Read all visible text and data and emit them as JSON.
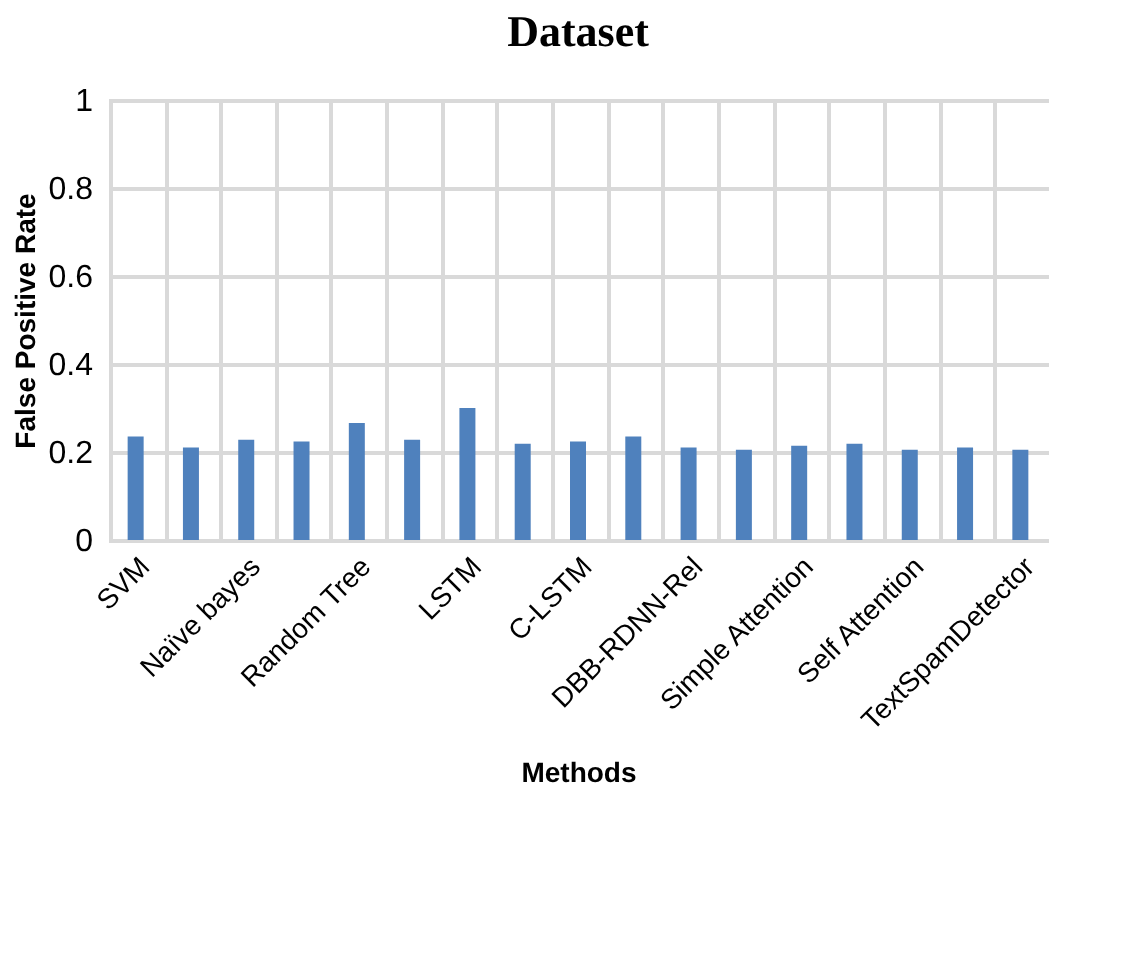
{
  "chart_data": {
    "type": "bar",
    "title": "Dataset",
    "xlabel": "Methods",
    "ylabel": "False Positive Rate",
    "categories": [
      "SVM",
      null,
      "Naïve bayes",
      null,
      "Random Tree",
      null,
      "LSTM",
      null,
      "C-LSTM",
      null,
      "DBB-RDNN-Rel",
      null,
      "Simple Attention",
      null,
      "Self Attention",
      null,
      "TextSpamDetector"
    ],
    "values": [
      0.235,
      0.21,
      0.228,
      0.224,
      0.266,
      0.228,
      0.3,
      0.219,
      0.224,
      0.235,
      0.21,
      0.205,
      0.214,
      0.219,
      0.205,
      0.21,
      0.205
    ],
    "color": "#4f81bd",
    "ylim": [
      0,
      1
    ],
    "yticks": [
      0,
      0.2,
      0.4,
      0.6,
      0.8,
      1
    ],
    "grid": true
  }
}
